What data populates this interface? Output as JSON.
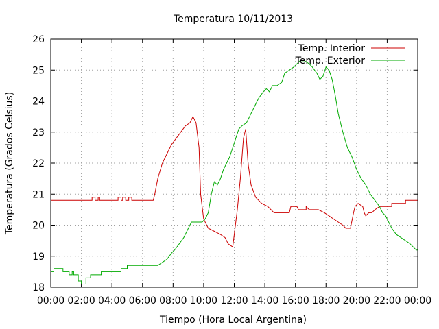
{
  "chart_data": {
    "type": "line",
    "title": "Temperatura 10/11/2013",
    "xlabel": "Tiempo (Hora Local Argentina)",
    "ylabel": "Temperatura (Grados Celsius)",
    "xlim": [
      0,
      24
    ],
    "ylim": [
      18,
      26
    ],
    "x_tick_labels": [
      "00:00",
      "02:00",
      "04:00",
      "06:00",
      "08:00",
      "10:00",
      "12:00",
      "14:00",
      "16:00",
      "18:00",
      "20:00",
      "22:00",
      "00:00"
    ],
    "y_tick_labels": [
      "18",
      "19",
      "20",
      "21",
      "22",
      "23",
      "24",
      "25",
      "26"
    ],
    "grid": true,
    "legend_position": "top-right",
    "x_unit": "hours",
    "series": [
      {
        "name": "Temp. Interior",
        "color": "#cc0000",
        "points": [
          [
            0,
            20.8
          ],
          [
            2.7,
            20.8
          ],
          [
            2.7,
            20.9
          ],
          [
            2.9,
            20.9
          ],
          [
            2.9,
            20.8
          ],
          [
            3.1,
            20.8
          ],
          [
            3.1,
            20.9
          ],
          [
            3.2,
            20.9
          ],
          [
            3.2,
            20.8
          ],
          [
            4.4,
            20.8
          ],
          [
            4.4,
            20.9
          ],
          [
            4.6,
            20.9
          ],
          [
            4.6,
            20.8
          ],
          [
            4.7,
            20.8
          ],
          [
            4.7,
            20.9
          ],
          [
            4.9,
            20.9
          ],
          [
            4.9,
            20.8
          ],
          [
            5.1,
            20.8
          ],
          [
            5.1,
            20.9
          ],
          [
            5.3,
            20.9
          ],
          [
            5.3,
            20.8
          ],
          [
            6.7,
            20.8
          ],
          [
            6.8,
            21.0
          ],
          [
            7.0,
            21.5
          ],
          [
            7.3,
            22.0
          ],
          [
            7.6,
            22.3
          ],
          [
            7.9,
            22.6
          ],
          [
            8.2,
            22.8
          ],
          [
            8.5,
            23.0
          ],
          [
            8.8,
            23.2
          ],
          [
            9.1,
            23.3
          ],
          [
            9.3,
            23.5
          ],
          [
            9.5,
            23.3
          ],
          [
            9.7,
            22.5
          ],
          [
            9.8,
            21.0
          ],
          [
            10.0,
            20.2
          ],
          [
            10.3,
            19.9
          ],
          [
            10.7,
            19.8
          ],
          [
            11.1,
            19.7
          ],
          [
            11.4,
            19.6
          ],
          [
            11.6,
            19.4
          ],
          [
            11.9,
            19.3
          ],
          [
            12.0,
            19.7
          ],
          [
            12.2,
            20.5
          ],
          [
            12.4,
            21.5
          ],
          [
            12.6,
            22.8
          ],
          [
            12.75,
            23.1
          ],
          [
            12.9,
            22.0
          ],
          [
            13.1,
            21.3
          ],
          [
            13.4,
            20.9
          ],
          [
            13.8,
            20.7
          ],
          [
            14.2,
            20.6
          ],
          [
            14.6,
            20.4
          ],
          [
            15.6,
            20.4
          ],
          [
            15.7,
            20.6
          ],
          [
            16.1,
            20.6
          ],
          [
            16.2,
            20.5
          ],
          [
            16.7,
            20.5
          ],
          [
            16.7,
            20.6
          ],
          [
            16.9,
            20.5
          ],
          [
            17.5,
            20.5
          ],
          [
            17.9,
            20.4
          ],
          [
            18.2,
            20.3
          ],
          [
            18.5,
            20.2
          ],
          [
            18.8,
            20.1
          ],
          [
            19.1,
            20.0
          ],
          [
            19.3,
            19.9
          ],
          [
            19.6,
            19.9
          ],
          [
            19.8,
            20.4
          ],
          [
            19.9,
            20.6
          ],
          [
            20.1,
            20.7
          ],
          [
            20.4,
            20.6
          ],
          [
            20.5,
            20.4
          ],
          [
            20.6,
            20.3
          ],
          [
            20.8,
            20.4
          ],
          [
            21.0,
            20.4
          ],
          [
            21.2,
            20.5
          ],
          [
            21.5,
            20.6
          ],
          [
            22.3,
            20.6
          ],
          [
            22.3,
            20.7
          ],
          [
            23.2,
            20.7
          ],
          [
            23.2,
            20.8
          ],
          [
            24,
            20.8
          ]
        ]
      },
      {
        "name": "Temp. Exterior",
        "color": "#00aa00",
        "points": [
          [
            0,
            18.5
          ],
          [
            0.2,
            18.5
          ],
          [
            0.2,
            18.6
          ],
          [
            0.8,
            18.6
          ],
          [
            0.8,
            18.5
          ],
          [
            1.2,
            18.5
          ],
          [
            1.2,
            18.4
          ],
          [
            1.4,
            18.4
          ],
          [
            1.4,
            18.5
          ],
          [
            1.5,
            18.5
          ],
          [
            1.5,
            18.4
          ],
          [
            1.8,
            18.4
          ],
          [
            1.8,
            18.2
          ],
          [
            2.0,
            18.2
          ],
          [
            2.0,
            18.1
          ],
          [
            2.3,
            18.1
          ],
          [
            2.3,
            18.3
          ],
          [
            2.6,
            18.3
          ],
          [
            2.6,
            18.4
          ],
          [
            3.3,
            18.4
          ],
          [
            3.3,
            18.5
          ],
          [
            4.6,
            18.5
          ],
          [
            4.6,
            18.6
          ],
          [
            5.0,
            18.6
          ],
          [
            5.0,
            18.7
          ],
          [
            6.7,
            18.7
          ],
          [
            7.0,
            18.7
          ],
          [
            7.3,
            18.8
          ],
          [
            7.6,
            18.9
          ],
          [
            7.9,
            19.1
          ],
          [
            8.1,
            19.2
          ],
          [
            8.4,
            19.4
          ],
          [
            8.7,
            19.6
          ],
          [
            9.0,
            19.9
          ],
          [
            9.2,
            20.1
          ],
          [
            9.9,
            20.1
          ],
          [
            10.1,
            20.2
          ],
          [
            10.3,
            20.4
          ],
          [
            10.5,
            21.0
          ],
          [
            10.7,
            21.4
          ],
          [
            10.9,
            21.3
          ],
          [
            11.1,
            21.5
          ],
          [
            11.3,
            21.8
          ],
          [
            11.5,
            22.0
          ],
          [
            11.7,
            22.2
          ],
          [
            11.9,
            22.5
          ],
          [
            12.1,
            22.8
          ],
          [
            12.3,
            23.1
          ],
          [
            12.5,
            23.2
          ],
          [
            12.8,
            23.3
          ],
          [
            13.0,
            23.5
          ],
          [
            13.3,
            23.8
          ],
          [
            13.6,
            24.1
          ],
          [
            13.9,
            24.3
          ],
          [
            14.1,
            24.4
          ],
          [
            14.3,
            24.3
          ],
          [
            14.5,
            24.5
          ],
          [
            14.8,
            24.5
          ],
          [
            15.1,
            24.6
          ],
          [
            15.3,
            24.9
          ],
          [
            15.6,
            25.0
          ],
          [
            15.9,
            25.1
          ],
          [
            16.1,
            25.2
          ],
          [
            16.3,
            25.3
          ],
          [
            16.6,
            25.3
          ],
          [
            16.9,
            25.2
          ],
          [
            17.1,
            25.1
          ],
          [
            17.4,
            24.9
          ],
          [
            17.6,
            24.7
          ],
          [
            17.8,
            24.8
          ],
          [
            18.0,
            25.1
          ],
          [
            18.2,
            25.0
          ],
          [
            18.4,
            24.7
          ],
          [
            18.6,
            24.2
          ],
          [
            18.8,
            23.6
          ],
          [
            19.1,
            23.0
          ],
          [
            19.4,
            22.5
          ],
          [
            19.7,
            22.2
          ],
          [
            20.0,
            21.8
          ],
          [
            20.3,
            21.5
          ],
          [
            20.6,
            21.3
          ],
          [
            20.9,
            21.0
          ],
          [
            21.2,
            20.8
          ],
          [
            21.5,
            20.6
          ],
          [
            21.7,
            20.4
          ],
          [
            21.9,
            20.3
          ],
          [
            22.1,
            20.1
          ],
          [
            22.3,
            19.9
          ],
          [
            22.6,
            19.7
          ],
          [
            22.9,
            19.6
          ],
          [
            23.2,
            19.5
          ],
          [
            23.5,
            19.4
          ],
          [
            23.7,
            19.3
          ],
          [
            23.9,
            19.2
          ],
          [
            24,
            19.2
          ]
        ]
      }
    ]
  }
}
